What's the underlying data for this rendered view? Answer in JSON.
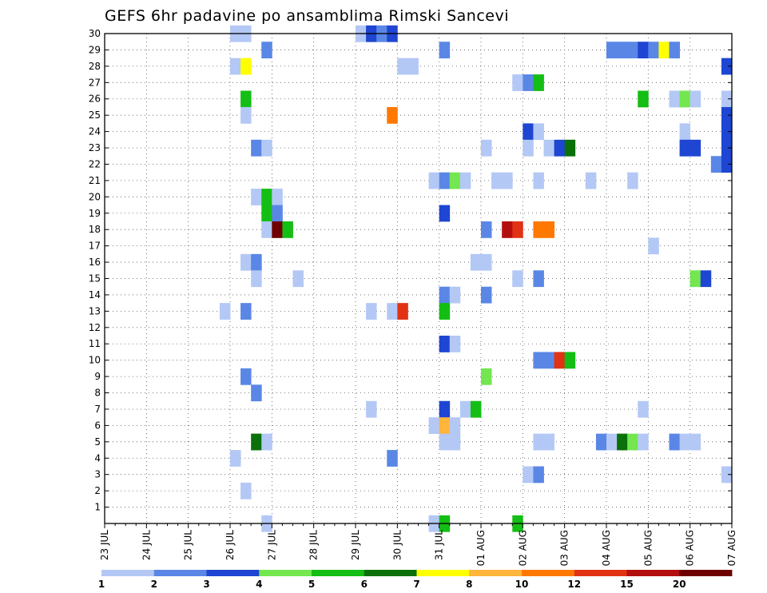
{
  "chart_data": {
    "type": "heatmap",
    "title": "GEFS 6hr padavine po ansamblima Rimski Sancevi",
    "x_ticks": [
      "23 JUL",
      "24 JUL",
      "25 JUL",
      "26 JUL",
      "27 JUL",
      "28 JUL",
      "29 JUL",
      "30 JUL",
      "31 JUL",
      "01 AUG",
      "02 AUG",
      "03 AUG",
      "04 AUG",
      "05 AUG",
      "06 AUG",
      "07 AUG"
    ],
    "y_ticks": [
      "1",
      "2",
      "3",
      "4",
      "5",
      "6",
      "7",
      "8",
      "9",
      "10",
      "11",
      "12",
      "13",
      "14",
      "15",
      "16",
      "17",
      "18",
      "19",
      "20",
      "21",
      "22",
      "23",
      "24",
      "25",
      "26",
      "27",
      "28",
      "29",
      "30"
    ],
    "x_range_days": [
      0,
      15
    ],
    "steps_per_day": 4,
    "y_range": [
      0,
      30
    ],
    "grid": true,
    "colorbar": {
      "colors": [
        "#b4c8f5",
        "#5a87e6",
        "#1e46d2",
        "#73e650",
        "#14be14",
        "#0a700a",
        "#ffff00",
        "#ffb43c",
        "#ff7800",
        "#e13214",
        "#b40f0f",
        "#6e0000"
      ],
      "labels": [
        "1",
        "2",
        "3",
        "4",
        "5",
        "6",
        "7",
        "8",
        "10",
        "12",
        "15",
        "20"
      ]
    },
    "cells": [
      {
        "m": 30,
        "s": 12,
        "c": 0
      },
      {
        "m": 30,
        "s": 13,
        "c": 0
      },
      {
        "m": 30,
        "s": 24,
        "c": 0
      },
      {
        "m": 30,
        "s": 25,
        "c": 2
      },
      {
        "m": 30,
        "s": 26,
        "c": 1
      },
      {
        "m": 30,
        "s": 27,
        "c": 2
      },
      {
        "m": 29,
        "s": 15,
        "c": 1
      },
      {
        "m": 29,
        "s": 32,
        "c": 1
      },
      {
        "m": 29,
        "s": 48,
        "c": 1
      },
      {
        "m": 29,
        "s": 49,
        "c": 1
      },
      {
        "m": 29,
        "s": 50,
        "c": 1
      },
      {
        "m": 29,
        "s": 51,
        "c": 2
      },
      {
        "m": 29,
        "s": 52,
        "c": 1
      },
      {
        "m": 29,
        "s": 53,
        "c": 6
      },
      {
        "m": 29,
        "s": 54,
        "c": 1
      },
      {
        "m": 28,
        "s": 12,
        "c": 0
      },
      {
        "m": 28,
        "s": 13,
        "c": 6
      },
      {
        "m": 28,
        "s": 28,
        "c": 0
      },
      {
        "m": 28,
        "s": 29,
        "c": 0
      },
      {
        "m": 28,
        "s": 59,
        "c": 2
      },
      {
        "m": 27,
        "s": 39,
        "c": 0
      },
      {
        "m": 27,
        "s": 40,
        "c": 1
      },
      {
        "m": 27,
        "s": 41,
        "c": 4
      },
      {
        "m": 26,
        "s": 13,
        "c": 4
      },
      {
        "m": 26,
        "s": 51,
        "c": 4
      },
      {
        "m": 26,
        "s": 54,
        "c": 0
      },
      {
        "m": 26,
        "s": 55,
        "c": 3
      },
      {
        "m": 26,
        "s": 56,
        "c": 0
      },
      {
        "m": 26,
        "s": 59,
        "c": 0
      },
      {
        "m": 25,
        "s": 13,
        "c": 0
      },
      {
        "m": 25,
        "s": 27,
        "c": 8
      },
      {
        "m": 25,
        "s": 59,
        "c": 2
      },
      {
        "m": 24,
        "s": 40,
        "c": 2
      },
      {
        "m": 24,
        "s": 41,
        "c": 0
      },
      {
        "m": 24,
        "s": 55,
        "c": 0
      },
      {
        "m": 24,
        "s": 59,
        "c": 2
      },
      {
        "m": 23,
        "s": 14,
        "c": 1
      },
      {
        "m": 23,
        "s": 15,
        "c": 0
      },
      {
        "m": 23,
        "s": 36,
        "c": 0
      },
      {
        "m": 23,
        "s": 40,
        "c": 0
      },
      {
        "m": 23,
        "s": 42,
        "c": 0
      },
      {
        "m": 23,
        "s": 43,
        "c": 2
      },
      {
        "m": 23,
        "s": 44,
        "c": 5
      },
      {
        "m": 23,
        "s": 55,
        "c": 2
      },
      {
        "m": 23,
        "s": 56,
        "c": 2
      },
      {
        "m": 23,
        "s": 59,
        "c": 2
      },
      {
        "m": 22,
        "s": 58,
        "c": 1
      },
      {
        "m": 22,
        "s": 59,
        "c": 2
      },
      {
        "m": 21,
        "s": 31,
        "c": 0
      },
      {
        "m": 21,
        "s": 32,
        "c": 1
      },
      {
        "m": 21,
        "s": 33,
        "c": 3
      },
      {
        "m": 21,
        "s": 34,
        "c": 0
      },
      {
        "m": 21,
        "s": 37,
        "c": 0
      },
      {
        "m": 21,
        "s": 38,
        "c": 0
      },
      {
        "m": 21,
        "s": 41,
        "c": 0
      },
      {
        "m": 21,
        "s": 46,
        "c": 0
      },
      {
        "m": 21,
        "s": 50,
        "c": 0
      },
      {
        "m": 20,
        "s": 14,
        "c": 0
      },
      {
        "m": 20,
        "s": 15,
        "c": 4
      },
      {
        "m": 20,
        "s": 16,
        "c": 0
      },
      {
        "m": 19,
        "s": 15,
        "c": 4
      },
      {
        "m": 19,
        "s": 16,
        "c": 1
      },
      {
        "m": 19,
        "s": 32,
        "c": 2
      },
      {
        "m": 18,
        "s": 15,
        "c": 0
      },
      {
        "m": 18,
        "s": 16,
        "c": 11
      },
      {
        "m": 18,
        "s": 17,
        "c": 4
      },
      {
        "m": 18,
        "s": 36,
        "c": 1
      },
      {
        "m": 18,
        "s": 38,
        "c": 10
      },
      {
        "m": 18,
        "s": 39,
        "c": 9
      },
      {
        "m": 18,
        "s": 41,
        "c": 8
      },
      {
        "m": 18,
        "s": 42,
        "c": 8
      },
      {
        "m": 17,
        "s": 52,
        "c": 0
      },
      {
        "m": 16,
        "s": 13,
        "c": 0
      },
      {
        "m": 16,
        "s": 14,
        "c": 1
      },
      {
        "m": 16,
        "s": 35,
        "c": 0
      },
      {
        "m": 16,
        "s": 36,
        "c": 0
      },
      {
        "m": 15,
        "s": 14,
        "c": 0
      },
      {
        "m": 15,
        "s": 18,
        "c": 0
      },
      {
        "m": 15,
        "s": 39,
        "c": 0
      },
      {
        "m": 15,
        "s": 41,
        "c": 1
      },
      {
        "m": 15,
        "s": 56,
        "c": 3
      },
      {
        "m": 15,
        "s": 57,
        "c": 2
      },
      {
        "m": 14,
        "s": 32,
        "c": 1
      },
      {
        "m": 14,
        "s": 33,
        "c": 0
      },
      {
        "m": 14,
        "s": 36,
        "c": 1
      },
      {
        "m": 13,
        "s": 11,
        "c": 0
      },
      {
        "m": 13,
        "s": 13,
        "c": 1
      },
      {
        "m": 13,
        "s": 25,
        "c": 0
      },
      {
        "m": 13,
        "s": 27,
        "c": 0
      },
      {
        "m": 13,
        "s": 28,
        "c": 9
      },
      {
        "m": 13,
        "s": 32,
        "c": 4
      },
      {
        "m": 11,
        "s": 32,
        "c": 2
      },
      {
        "m": 11,
        "s": 33,
        "c": 0
      },
      {
        "m": 10,
        "s": 41,
        "c": 1
      },
      {
        "m": 10,
        "s": 42,
        "c": 1
      },
      {
        "m": 10,
        "s": 43,
        "c": 9
      },
      {
        "m": 10,
        "s": 44,
        "c": 4
      },
      {
        "m": 9,
        "s": 13,
        "c": 1
      },
      {
        "m": 9,
        "s": 36,
        "c": 3
      },
      {
        "m": 8,
        "s": 14,
        "c": 1
      },
      {
        "m": 7,
        "s": 25,
        "c": 0
      },
      {
        "m": 7,
        "s": 32,
        "c": 2
      },
      {
        "m": 7,
        "s": 34,
        "c": 0
      },
      {
        "m": 7,
        "s": 35,
        "c": 4
      },
      {
        "m": 7,
        "s": 51,
        "c": 0
      },
      {
        "m": 6,
        "s": 31,
        "c": 0
      },
      {
        "m": 6,
        "s": 32,
        "c": 7
      },
      {
        "m": 6,
        "s": 33,
        "c": 0
      },
      {
        "m": 5,
        "s": 14,
        "c": 5
      },
      {
        "m": 5,
        "s": 15,
        "c": 0
      },
      {
        "m": 5,
        "s": 32,
        "c": 0
      },
      {
        "m": 5,
        "s": 33,
        "c": 0
      },
      {
        "m": 5,
        "s": 41,
        "c": 0
      },
      {
        "m": 5,
        "s": 42,
        "c": 0
      },
      {
        "m": 5,
        "s": 47,
        "c": 1
      },
      {
        "m": 5,
        "s": 48,
        "c": 0
      },
      {
        "m": 5,
        "s": 49,
        "c": 5
      },
      {
        "m": 5,
        "s": 50,
        "c": 3
      },
      {
        "m": 5,
        "s": 51,
        "c": 0
      },
      {
        "m": 5,
        "s": 54,
        "c": 1
      },
      {
        "m": 5,
        "s": 55,
        "c": 0
      },
      {
        "m": 5,
        "s": 56,
        "c": 0
      },
      {
        "m": 4,
        "s": 12,
        "c": 0
      },
      {
        "m": 4,
        "s": 27,
        "c": 1
      },
      {
        "m": 3,
        "s": 40,
        "c": 0
      },
      {
        "m": 3,
        "s": 41,
        "c": 1
      },
      {
        "m": 3,
        "s": 59,
        "c": 0
      },
      {
        "m": 2,
        "s": 13,
        "c": 0
      },
      {
        "m": 0,
        "s": 15,
        "c": 0
      },
      {
        "m": 0,
        "s": 31,
        "c": 0
      },
      {
        "m": 0,
        "s": 32,
        "c": 4
      },
      {
        "m": 0,
        "s": 39,
        "c": 4
      }
    ]
  }
}
